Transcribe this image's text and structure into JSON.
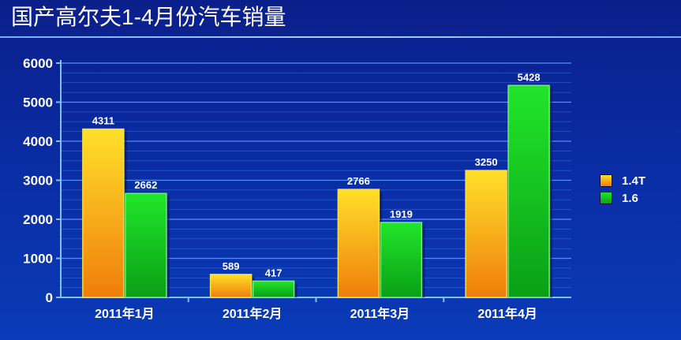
{
  "title": "国产高尔夫1-4月份汽车销量",
  "chart_data": {
    "type": "bar",
    "title": "国产高尔夫1-4月份汽车销量",
    "categories": [
      "2011年1月",
      "2011年2月",
      "2011年3月",
      "2011年4月"
    ],
    "series": [
      {
        "name": "1.4T",
        "values": [
          4311,
          589,
          2766,
          3250
        ],
        "color": "#f2a516"
      },
      {
        "name": "1.6",
        "values": [
          2662,
          417,
          1919,
          5428
        ],
        "color": "#15c21e"
      }
    ],
    "ylim": [
      0,
      6000
    ],
    "yticks": [
      0,
      1000,
      2000,
      3000,
      4000,
      5000,
      6000
    ],
    "grid": true,
    "legend_position": "right"
  }
}
